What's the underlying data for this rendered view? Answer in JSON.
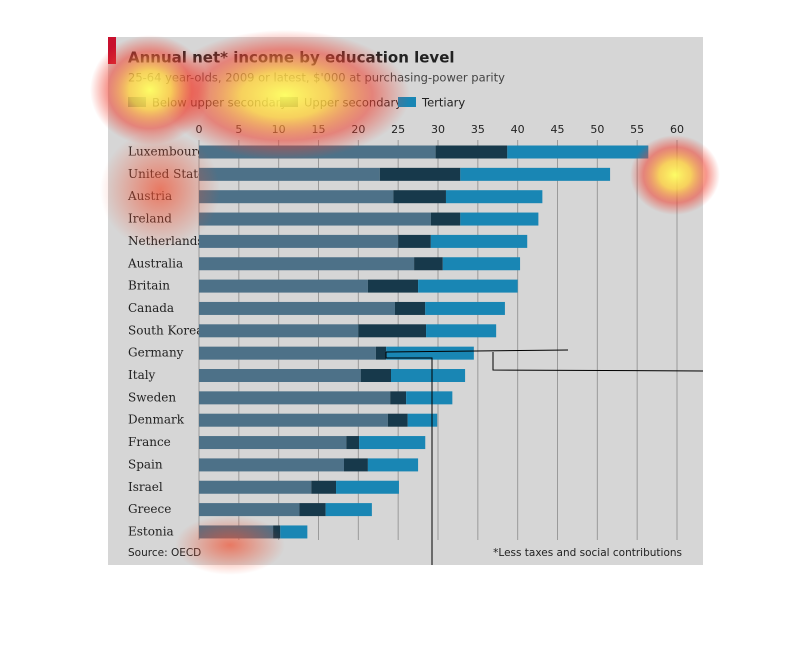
{
  "chart_data": {
    "type": "stacked-bar-horizontal",
    "title": "Annual net* income by education level",
    "subtitle": "25-64 year-olds, 2009 or latest, $'000 at purchasing-power parity",
    "categories": [
      "Luxembourg",
      "United States",
      "Austria",
      "Ireland",
      "Netherlands",
      "Australia",
      "Britain",
      "Canada",
      "South Korea",
      "Germany",
      "Italy",
      "Sweden",
      "Denmark",
      "France",
      "Spain",
      "Israel",
      "Greece",
      "Estonia"
    ],
    "series": [
      {
        "name": "Below upper secondary",
        "color": "#4d7188",
        "values": [
          29.7,
          22.7,
          24.4,
          29.1,
          25.0,
          27.0,
          21.2,
          24.6,
          20.0,
          22.2,
          20.3,
          24.0,
          23.7,
          18.5,
          18.2,
          14.1,
          12.6,
          9.3
        ]
      },
      {
        "name": "Upper secondary",
        "color": "#17394b",
        "values": [
          9.0,
          10.1,
          6.6,
          3.7,
          4.1,
          3.6,
          6.3,
          3.8,
          8.5,
          1.3,
          3.8,
          2.0,
          2.5,
          1.6,
          3.0,
          3.1,
          3.3,
          0.9
        ]
      },
      {
        "name": "Tertiary",
        "color": "#1986b4",
        "values": [
          17.7,
          18.8,
          12.1,
          9.8,
          12.1,
          9.7,
          12.5,
          10.0,
          8.8,
          11.0,
          9.3,
          5.8,
          3.7,
          8.3,
          6.3,
          7.9,
          5.8,
          3.4
        ]
      }
    ],
    "xlim": [
      0,
      60
    ],
    "xticks": [
      0,
      5,
      10,
      15,
      20,
      25,
      30,
      35,
      40,
      45,
      50,
      55,
      60
    ],
    "grid": true,
    "source": "Source: OECD",
    "note": "*Less taxes and social contributions"
  }
}
